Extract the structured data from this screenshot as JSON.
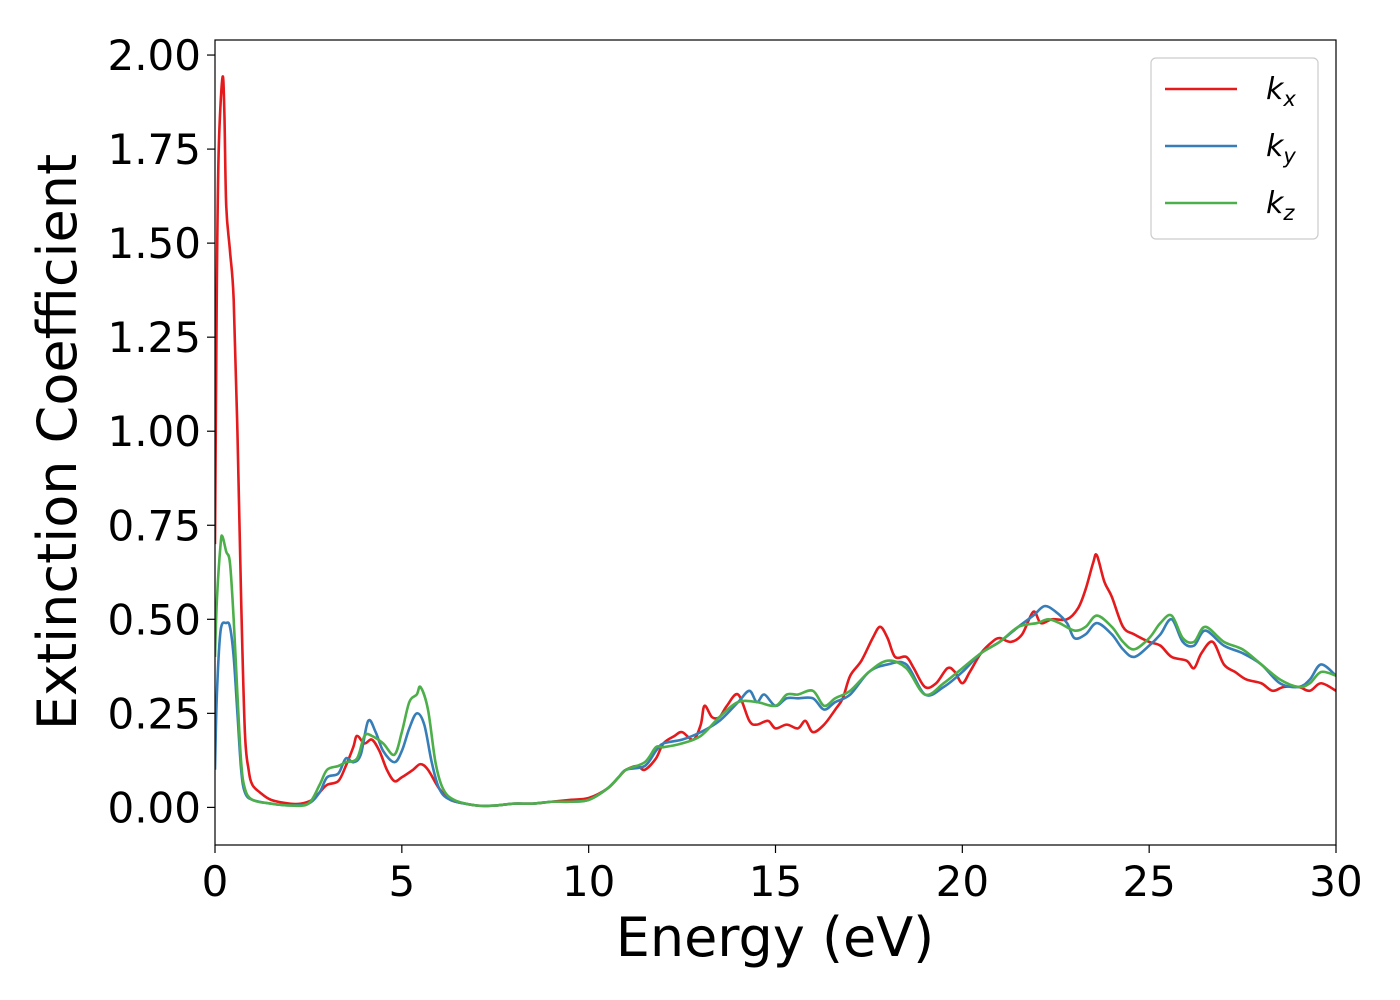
{
  "chart_data": {
    "type": "line",
    "title": "",
    "xlabel": "Energy (eV)",
    "ylabel": "Extinction Coefficient",
    "xlim": [
      0,
      30
    ],
    "ylim": [
      -0.1,
      2.04
    ],
    "xticks": [
      0,
      5,
      10,
      15,
      20,
      25,
      30
    ],
    "xtick_labels": [
      "0",
      "5",
      "10",
      "15",
      "20",
      "25",
      "30"
    ],
    "yticks": [
      0,
      0.25,
      0.5,
      0.75,
      1.0,
      1.25,
      1.5,
      1.75,
      2.0
    ],
    "ytick_labels": [
      "0.00",
      "0.25",
      "0.50",
      "0.75",
      "1.00",
      "1.25",
      "1.50",
      "1.75",
      "2.00"
    ],
    "grid": false,
    "legend_position": "top-right",
    "series": [
      {
        "name": "k",
        "sub": "x",
        "color": "#e41a1c",
        "points": [
          [
            0,
            0.7
          ],
          [
            0.05,
            1.4
          ],
          [
            0.1,
            1.75
          ],
          [
            0.2,
            1.94
          ],
          [
            0.25,
            1.85
          ],
          [
            0.3,
            1.6
          ],
          [
            0.4,
            1.48
          ],
          [
            0.5,
            1.35
          ],
          [
            0.6,
            1.0
          ],
          [
            0.7,
            0.55
          ],
          [
            0.8,
            0.2
          ],
          [
            0.9,
            0.1
          ],
          [
            1.0,
            0.06
          ],
          [
            1.2,
            0.04
          ],
          [
            1.5,
            0.02
          ],
          [
            2.0,
            0.01
          ],
          [
            2.3,
            0.01
          ],
          [
            2.6,
            0.02
          ],
          [
            2.8,
            0.04
          ],
          [
            3.0,
            0.06
          ],
          [
            3.3,
            0.07
          ],
          [
            3.5,
            0.11
          ],
          [
            3.7,
            0.16
          ],
          [
            3.8,
            0.19
          ],
          [
            4.0,
            0.17
          ],
          [
            4.2,
            0.18
          ],
          [
            4.4,
            0.15
          ],
          [
            4.6,
            0.1
          ],
          [
            4.8,
            0.07
          ],
          [
            5.0,
            0.08
          ],
          [
            5.3,
            0.1
          ],
          [
            5.5,
            0.115
          ],
          [
            5.7,
            0.1
          ],
          [
            6.0,
            0.05
          ],
          [
            6.3,
            0.02
          ],
          [
            6.7,
            0.01
          ],
          [
            7.0,
            0.005
          ],
          [
            7.5,
            0.005
          ],
          [
            8.0,
            0.01
          ],
          [
            8.5,
            0.01
          ],
          [
            9.0,
            0.015
          ],
          [
            9.5,
            0.02
          ],
          [
            10.0,
            0.025
          ],
          [
            10.5,
            0.05
          ],
          [
            10.8,
            0.08
          ],
          [
            11.0,
            0.1
          ],
          [
            11.3,
            0.11
          ],
          [
            11.5,
            0.1
          ],
          [
            11.8,
            0.13
          ],
          [
            12.0,
            0.17
          ],
          [
            12.3,
            0.19
          ],
          [
            12.5,
            0.2
          ],
          [
            12.8,
            0.18
          ],
          [
            13.0,
            0.22
          ],
          [
            13.1,
            0.27
          ],
          [
            13.3,
            0.24
          ],
          [
            13.5,
            0.24
          ],
          [
            13.7,
            0.27
          ],
          [
            14.0,
            0.3
          ],
          [
            14.3,
            0.23
          ],
          [
            14.5,
            0.22
          ],
          [
            14.8,
            0.23
          ],
          [
            15.0,
            0.21
          ],
          [
            15.3,
            0.22
          ],
          [
            15.6,
            0.21
          ],
          [
            15.8,
            0.23
          ],
          [
            16.0,
            0.2
          ],
          [
            16.3,
            0.22
          ],
          [
            16.6,
            0.26
          ],
          [
            16.8,
            0.29
          ],
          [
            17.0,
            0.35
          ],
          [
            17.3,
            0.39
          ],
          [
            17.6,
            0.45
          ],
          [
            17.8,
            0.48
          ],
          [
            18.0,
            0.45
          ],
          [
            18.2,
            0.4
          ],
          [
            18.5,
            0.4
          ],
          [
            18.7,
            0.37
          ],
          [
            19.0,
            0.32
          ],
          [
            19.3,
            0.33
          ],
          [
            19.6,
            0.37
          ],
          [
            19.8,
            0.36
          ],
          [
            20.0,
            0.33
          ],
          [
            20.2,
            0.36
          ],
          [
            20.5,
            0.41
          ],
          [
            20.8,
            0.44
          ],
          [
            21.0,
            0.45
          ],
          [
            21.3,
            0.44
          ],
          [
            21.6,
            0.46
          ],
          [
            21.9,
            0.52
          ],
          [
            22.1,
            0.49
          ],
          [
            22.4,
            0.5
          ],
          [
            22.8,
            0.5
          ],
          [
            23.1,
            0.53
          ],
          [
            23.3,
            0.58
          ],
          [
            23.5,
            0.65
          ],
          [
            23.6,
            0.67
          ],
          [
            23.8,
            0.6
          ],
          [
            24.0,
            0.56
          ],
          [
            24.3,
            0.48
          ],
          [
            24.6,
            0.46
          ],
          [
            25.0,
            0.44
          ],
          [
            25.3,
            0.43
          ],
          [
            25.6,
            0.4
          ],
          [
            26.0,
            0.39
          ],
          [
            26.2,
            0.37
          ],
          [
            26.4,
            0.41
          ],
          [
            26.7,
            0.44
          ],
          [
            27.0,
            0.38
          ],
          [
            27.3,
            0.36
          ],
          [
            27.6,
            0.34
          ],
          [
            28.0,
            0.33
          ],
          [
            28.3,
            0.31
          ],
          [
            28.6,
            0.32
          ],
          [
            29.0,
            0.32
          ],
          [
            29.3,
            0.31
          ],
          [
            29.6,
            0.33
          ],
          [
            30.0,
            0.31
          ]
        ]
      },
      {
        "name": "k",
        "sub": "y",
        "color": "#377eb8",
        "points": [
          [
            0,
            0.1
          ],
          [
            0.05,
            0.3
          ],
          [
            0.15,
            0.47
          ],
          [
            0.3,
            0.49
          ],
          [
            0.4,
            0.48
          ],
          [
            0.5,
            0.4
          ],
          [
            0.6,
            0.25
          ],
          [
            0.7,
            0.1
          ],
          [
            0.8,
            0.04
          ],
          [
            1.0,
            0.02
          ],
          [
            1.5,
            0.01
          ],
          [
            2.0,
            0.005
          ],
          [
            2.5,
            0.01
          ],
          [
            2.8,
            0.04
          ],
          [
            3.0,
            0.08
          ],
          [
            3.3,
            0.09
          ],
          [
            3.5,
            0.13
          ],
          [
            3.7,
            0.12
          ],
          [
            3.9,
            0.14
          ],
          [
            4.1,
            0.23
          ],
          [
            4.3,
            0.2
          ],
          [
            4.5,
            0.15
          ],
          [
            4.8,
            0.12
          ],
          [
            5.0,
            0.15
          ],
          [
            5.2,
            0.21
          ],
          [
            5.4,
            0.25
          ],
          [
            5.6,
            0.22
          ],
          [
            5.8,
            0.12
          ],
          [
            6.0,
            0.05
          ],
          [
            6.3,
            0.02
          ],
          [
            7.0,
            0.005
          ],
          [
            7.5,
            0.005
          ],
          [
            8.0,
            0.01
          ],
          [
            8.5,
            0.01
          ],
          [
            9.0,
            0.015
          ],
          [
            9.5,
            0.015
          ],
          [
            10.0,
            0.02
          ],
          [
            10.5,
            0.05
          ],
          [
            10.8,
            0.08
          ],
          [
            11.0,
            0.1
          ],
          [
            11.5,
            0.11
          ],
          [
            11.8,
            0.15
          ],
          [
            12.0,
            0.17
          ],
          [
            12.5,
            0.18
          ],
          [
            13.0,
            0.2
          ],
          [
            13.5,
            0.23
          ],
          [
            14.0,
            0.28
          ],
          [
            14.3,
            0.31
          ],
          [
            14.5,
            0.28
          ],
          [
            14.7,
            0.3
          ],
          [
            15.0,
            0.27
          ],
          [
            15.3,
            0.29
          ],
          [
            15.6,
            0.29
          ],
          [
            16.0,
            0.29
          ],
          [
            16.3,
            0.26
          ],
          [
            16.6,
            0.28
          ],
          [
            17.0,
            0.3
          ],
          [
            17.5,
            0.36
          ],
          [
            18.0,
            0.38
          ],
          [
            18.5,
            0.38
          ],
          [
            19.0,
            0.3
          ],
          [
            19.5,
            0.32
          ],
          [
            20.0,
            0.36
          ],
          [
            20.5,
            0.41
          ],
          [
            21.0,
            0.44
          ],
          [
            21.5,
            0.48
          ],
          [
            21.9,
            0.51
          ],
          [
            22.2,
            0.535
          ],
          [
            22.5,
            0.52
          ],
          [
            22.8,
            0.49
          ],
          [
            23.0,
            0.45
          ],
          [
            23.3,
            0.46
          ],
          [
            23.6,
            0.49
          ],
          [
            24.0,
            0.46
          ],
          [
            24.3,
            0.42
          ],
          [
            24.6,
            0.4
          ],
          [
            25.0,
            0.43
          ],
          [
            25.3,
            0.46
          ],
          [
            25.6,
            0.5
          ],
          [
            25.9,
            0.44
          ],
          [
            26.2,
            0.43
          ],
          [
            26.5,
            0.47
          ],
          [
            27.0,
            0.43
          ],
          [
            27.5,
            0.41
          ],
          [
            28.0,
            0.38
          ],
          [
            28.5,
            0.33
          ],
          [
            29.0,
            0.32
          ],
          [
            29.3,
            0.34
          ],
          [
            29.6,
            0.38
          ],
          [
            30.0,
            0.35
          ]
        ]
      },
      {
        "name": "k",
        "sub": "z",
        "color": "#4daf4a",
        "points": [
          [
            0,
            0.4
          ],
          [
            0.05,
            0.55
          ],
          [
            0.15,
            0.7
          ],
          [
            0.2,
            0.72
          ],
          [
            0.3,
            0.68
          ],
          [
            0.4,
            0.65
          ],
          [
            0.5,
            0.5
          ],
          [
            0.6,
            0.3
          ],
          [
            0.7,
            0.12
          ],
          [
            0.8,
            0.05
          ],
          [
            1.0,
            0.02
          ],
          [
            1.5,
            0.01
          ],
          [
            2.0,
            0.005
          ],
          [
            2.5,
            0.01
          ],
          [
            2.8,
            0.06
          ],
          [
            3.0,
            0.1
          ],
          [
            3.3,
            0.11
          ],
          [
            3.5,
            0.12
          ],
          [
            3.8,
            0.13
          ],
          [
            4.0,
            0.19
          ],
          [
            4.2,
            0.19
          ],
          [
            4.5,
            0.17
          ],
          [
            4.8,
            0.14
          ],
          [
            5.0,
            0.2
          ],
          [
            5.2,
            0.28
          ],
          [
            5.4,
            0.3
          ],
          [
            5.5,
            0.32
          ],
          [
            5.7,
            0.26
          ],
          [
            5.9,
            0.12
          ],
          [
            6.1,
            0.05
          ],
          [
            6.4,
            0.02
          ],
          [
            7.0,
            0.005
          ],
          [
            7.5,
            0.005
          ],
          [
            8.0,
            0.01
          ],
          [
            8.5,
            0.01
          ],
          [
            9.0,
            0.015
          ],
          [
            9.5,
            0.015
          ],
          [
            10.0,
            0.02
          ],
          [
            10.5,
            0.05
          ],
          [
            10.8,
            0.08
          ],
          [
            11.0,
            0.1
          ],
          [
            11.5,
            0.12
          ],
          [
            11.8,
            0.16
          ],
          [
            12.0,
            0.16
          ],
          [
            12.5,
            0.17
          ],
          [
            13.0,
            0.19
          ],
          [
            13.5,
            0.24
          ],
          [
            14.0,
            0.28
          ],
          [
            14.5,
            0.28
          ],
          [
            15.0,
            0.27
          ],
          [
            15.3,
            0.3
          ],
          [
            15.6,
            0.3
          ],
          [
            16.0,
            0.31
          ],
          [
            16.3,
            0.27
          ],
          [
            16.6,
            0.29
          ],
          [
            17.0,
            0.31
          ],
          [
            17.5,
            0.36
          ],
          [
            18.0,
            0.39
          ],
          [
            18.5,
            0.37
          ],
          [
            19.0,
            0.3
          ],
          [
            19.5,
            0.33
          ],
          [
            20.0,
            0.37
          ],
          [
            20.5,
            0.41
          ],
          [
            21.0,
            0.44
          ],
          [
            21.5,
            0.48
          ],
          [
            22.0,
            0.49
          ],
          [
            22.3,
            0.5
          ],
          [
            22.6,
            0.49
          ],
          [
            23.0,
            0.47
          ],
          [
            23.3,
            0.48
          ],
          [
            23.6,
            0.51
          ],
          [
            24.0,
            0.48
          ],
          [
            24.3,
            0.44
          ],
          [
            24.6,
            0.42
          ],
          [
            25.0,
            0.45
          ],
          [
            25.3,
            0.49
          ],
          [
            25.6,
            0.51
          ],
          [
            25.9,
            0.45
          ],
          [
            26.2,
            0.44
          ],
          [
            26.5,
            0.48
          ],
          [
            27.0,
            0.44
          ],
          [
            27.5,
            0.42
          ],
          [
            28.0,
            0.38
          ],
          [
            28.5,
            0.34
          ],
          [
            29.0,
            0.32
          ],
          [
            29.3,
            0.33
          ],
          [
            29.6,
            0.36
          ],
          [
            30.0,
            0.35
          ]
        ]
      }
    ]
  }
}
